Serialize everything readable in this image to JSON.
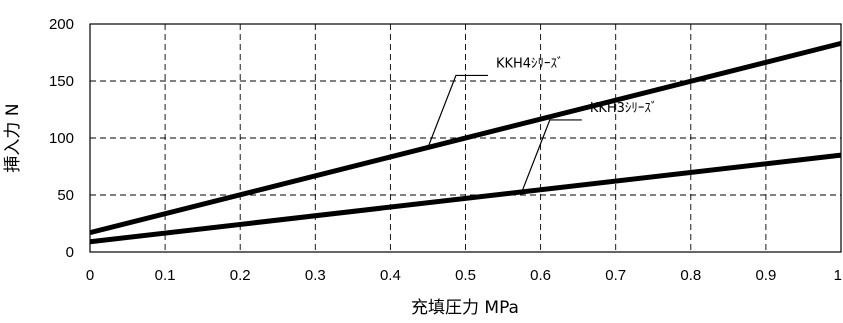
{
  "chart_data": {
    "type": "line",
    "xlabel": "充填圧力 MPa",
    "ylabel": "挿入力 N",
    "xlim": [
      0,
      1
    ],
    "ylim": [
      0,
      200
    ],
    "x_ticks": [
      "0",
      "0.1",
      "0.2",
      "0.3",
      "0.4",
      "0.5",
      "0.6",
      "0.7",
      "0.8",
      "0.9",
      "1"
    ],
    "y_ticks": [
      "0",
      "50",
      "100",
      "150",
      "200"
    ],
    "grid": true,
    "series": [
      {
        "name": "KKH4ｼﾘｰｽﾞ",
        "x": [
          0,
          1
        ],
        "y": [
          17,
          183
        ],
        "label_at_x": 0.45
      },
      {
        "name": "KKH3ｼﾘｰｽﾞ",
        "x": [
          0,
          1
        ],
        "y": [
          9,
          85
        ],
        "label_at_x": 0.575
      }
    ]
  }
}
